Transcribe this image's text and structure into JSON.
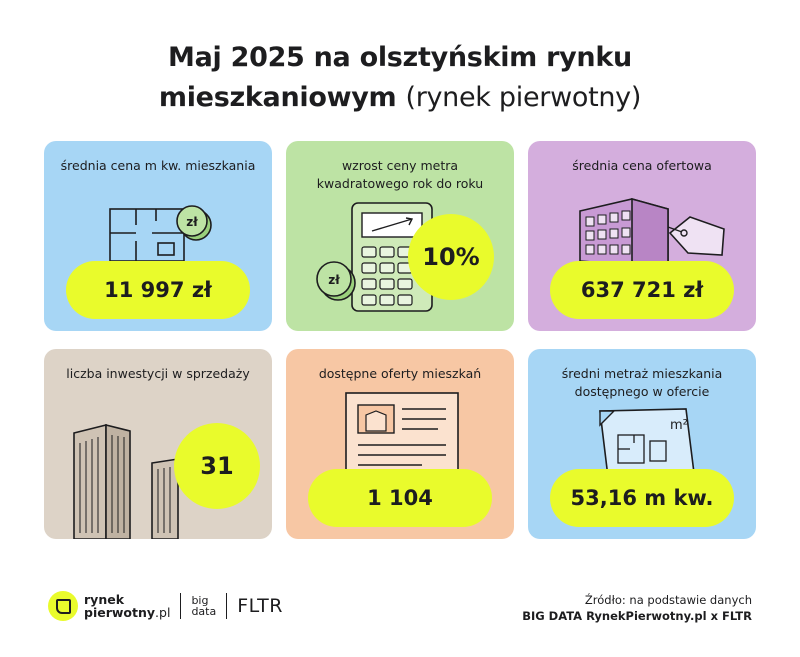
{
  "header": {
    "title_bold_1": "Maj 2025 na olsztyńskim rynku",
    "title_bold_2": "mieszkaniowym",
    "title_light": "(rynek pierwotny)"
  },
  "cards": [
    {
      "label": "średnia cena m kw. mieszkania",
      "value": "11 997 zł",
      "icon": "floor-plan-coin-icon",
      "coin_text": "zł",
      "color": "#a7d6f5"
    },
    {
      "label": "wzrost ceny metra kwadratowego rok do roku",
      "value": "10%",
      "icon": "calculator-coin-icon",
      "coin_text": "zł",
      "color": "#bde3a4"
    },
    {
      "label": "średnia cena ofertowa",
      "value": "637 721 zł",
      "icon": "building-price-tag-icon",
      "color": "#d4aedd"
    },
    {
      "label": "liczba inwestycji w sprzedaży",
      "value": "31",
      "icon": "skyscrapers-icon",
      "color": "#ddd3c7"
    },
    {
      "label": "dostępne oferty mieszkań",
      "value": "1 104",
      "icon": "listing-document-icon",
      "color": "#f7c7a4"
    },
    {
      "label": "średni metraż mieszkania dostępnego w ofercie",
      "value": "53,16 m kw.",
      "icon": "plan-sheet-m2-icon",
      "sheet_text": "m²",
      "color": "#a7d6f5"
    }
  ],
  "footer": {
    "logo_line1": "rynek",
    "logo_line2": "pierwotny",
    "logo_suffix": ".pl",
    "bigdata_line1": "big",
    "bigdata_line2": "data",
    "fltr": "FLTR",
    "source_line1": "Źródło: na podstawie danych",
    "source_line2": "BIG DATA RynekPierwotny.pl x FLTR"
  },
  "accent_color": "#e9fb2c"
}
